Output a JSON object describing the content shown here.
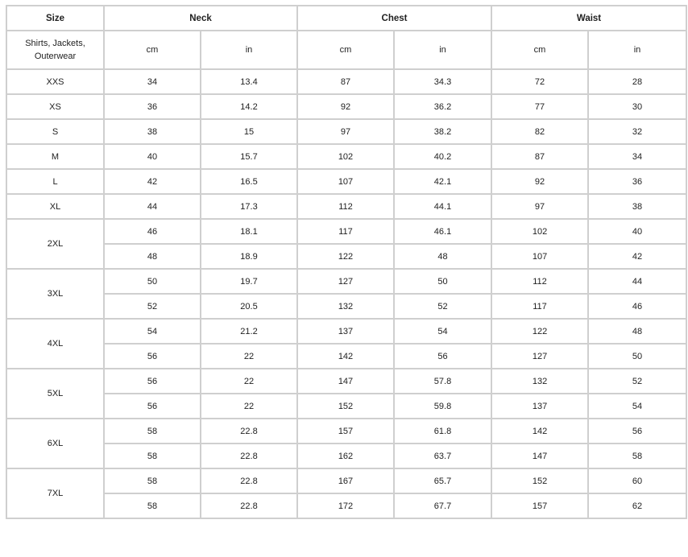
{
  "header": {
    "size": "Size",
    "groups": [
      "Neck",
      "Chest",
      "Waist"
    ],
    "category": "Shirts, Jackets, Outerwear",
    "units": [
      "cm",
      "in",
      "cm",
      "in",
      "cm",
      "in"
    ]
  },
  "sizes": [
    {
      "label": "XXS",
      "rows": [
        [
          "34",
          "13.4",
          "87",
          "34.3",
          "72",
          "28"
        ]
      ]
    },
    {
      "label": "XS",
      "rows": [
        [
          "36",
          "14.2",
          "92",
          "36.2",
          "77",
          "30"
        ]
      ]
    },
    {
      "label": "S",
      "rows": [
        [
          "38",
          "15",
          "97",
          "38.2",
          "82",
          "32"
        ]
      ]
    },
    {
      "label": "M",
      "rows": [
        [
          "40",
          "15.7",
          "102",
          "40.2",
          "87",
          "34"
        ]
      ]
    },
    {
      "label": "L",
      "rows": [
        [
          "42",
          "16.5",
          "107",
          "42.1",
          "92",
          "36"
        ]
      ]
    },
    {
      "label": "XL",
      "rows": [
        [
          "44",
          "17.3",
          "112",
          "44.1",
          "97",
          "38"
        ]
      ]
    },
    {
      "label": "2XL",
      "rows": [
        [
          "46",
          "18.1",
          "117",
          "46.1",
          "102",
          "40"
        ],
        [
          "48",
          "18.9",
          "122",
          "48",
          "107",
          "42"
        ]
      ]
    },
    {
      "label": "3XL",
      "rows": [
        [
          "50",
          "19.7",
          "127",
          "50",
          "112",
          "44"
        ],
        [
          "52",
          "20.5",
          "132",
          "52",
          "117",
          "46"
        ]
      ]
    },
    {
      "label": "4XL",
      "rows": [
        [
          "54",
          "21.2",
          "137",
          "54",
          "122",
          "48"
        ],
        [
          "56",
          "22",
          "142",
          "56",
          "127",
          "50"
        ]
      ]
    },
    {
      "label": "5XL",
      "rows": [
        [
          "56",
          "22",
          "147",
          "57.8",
          "132",
          "52"
        ],
        [
          "56",
          "22",
          "152",
          "59.8",
          "137",
          "54"
        ]
      ]
    },
    {
      "label": "6XL",
      "rows": [
        [
          "58",
          "22.8",
          "157",
          "61.8",
          "142",
          "56"
        ],
        [
          "58",
          "22.8",
          "162",
          "63.7",
          "147",
          "58"
        ]
      ]
    },
    {
      "label": "7XL",
      "rows": [
        [
          "58",
          "22.8",
          "167",
          "65.7",
          "152",
          "60"
        ],
        [
          "58",
          "22.8",
          "172",
          "67.7",
          "157",
          "62"
        ]
      ]
    }
  ]
}
